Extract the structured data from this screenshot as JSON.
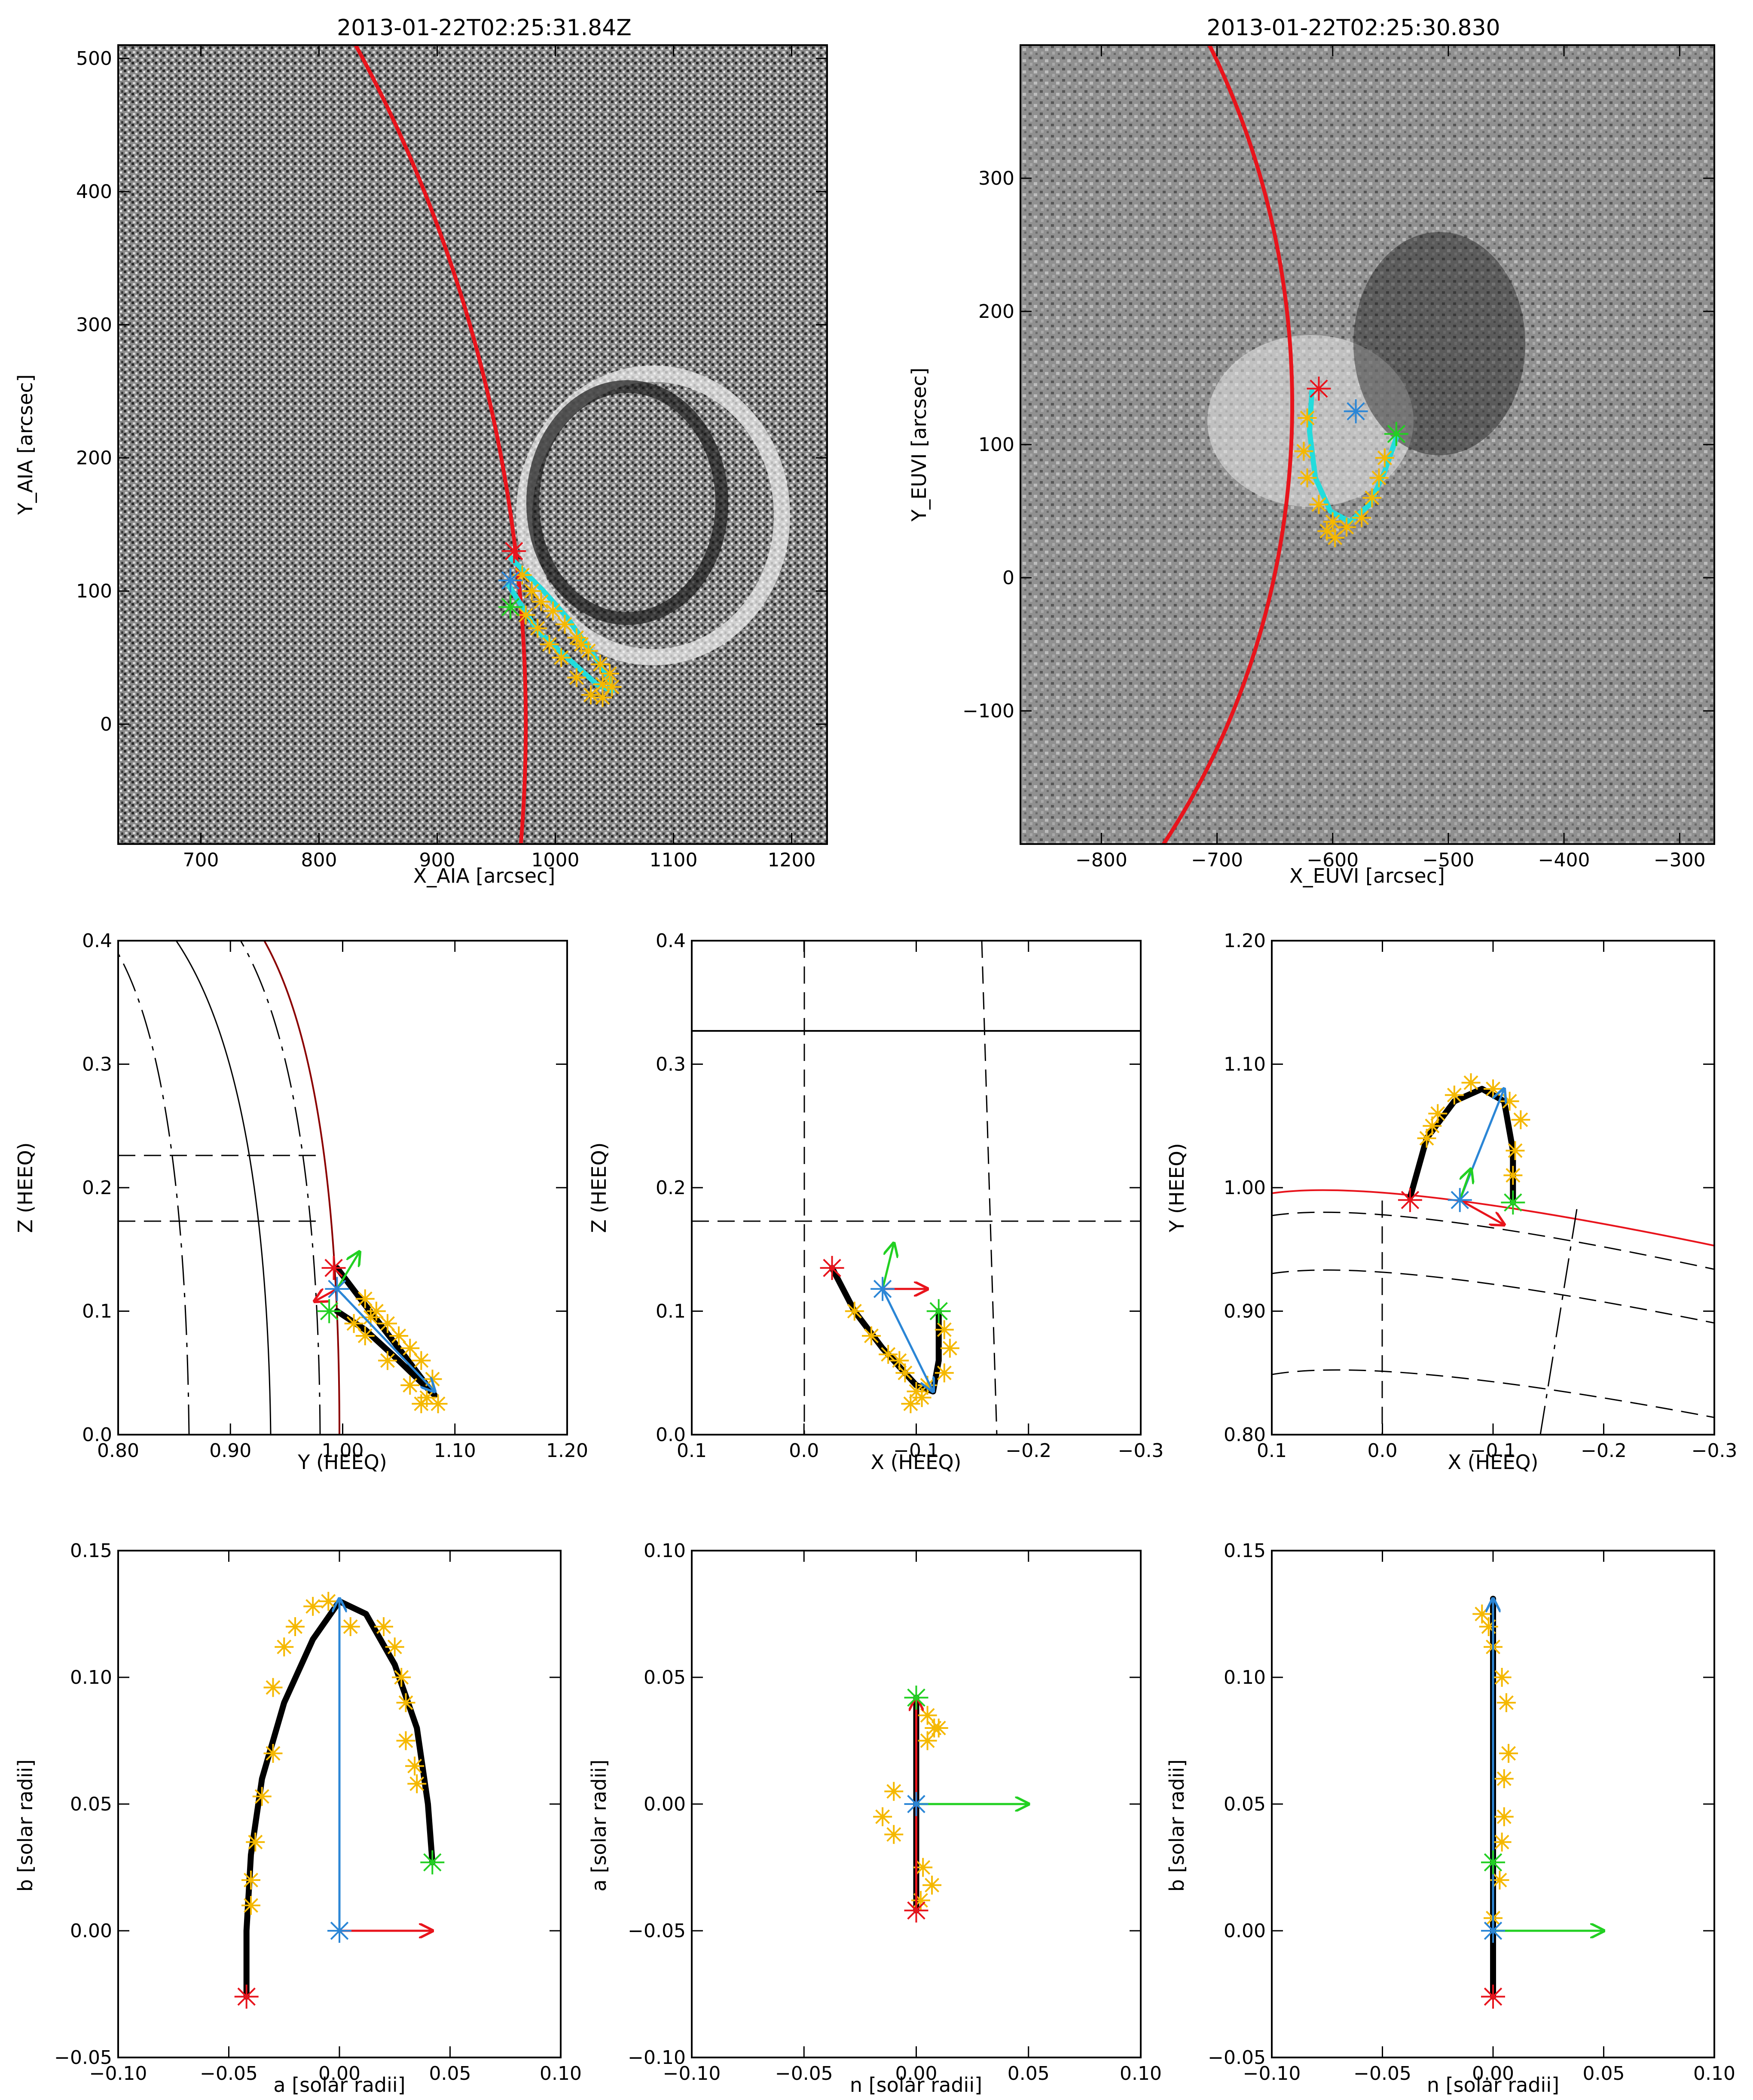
{
  "figure": {
    "panels": [
      {
        "id": "aia",
        "title": "2013-01-22T02:25:31.84Z",
        "xlabel": "X_AIA [arcsec]",
        "ylabel": "Y_AIA [arcsec]",
        "xlim": [
          630,
          1230
        ],
        "ylim": [
          -90,
          510
        ],
        "xticks": [
          700,
          800,
          900,
          1000,
          1100,
          1200
        ],
        "yticks": [
          0,
          100,
          200,
          300,
          400,
          500
        ],
        "image": "difference-image",
        "limb": {
          "color": "#e8141c",
          "cx": 0,
          "cy": 0,
          "r": 975
        },
        "fit_line": [
          [
            960,
            105
          ],
          [
            985,
            70
          ],
          [
            1010,
            50
          ],
          [
            1035,
            30
          ],
          [
            1048,
            25
          ],
          [
            1045,
            35
          ],
          [
            1030,
            55
          ],
          [
            1010,
            80
          ],
          [
            990,
            100
          ],
          [
            970,
            118
          ],
          [
            962,
            125
          ]
        ],
        "markers": {
          "red": [
            965,
            130
          ],
          "blue": [
            962,
            108
          ],
          "green": [
            962,
            88
          ]
        },
        "points": [
          [
            972,
            112
          ],
          [
            980,
            100
          ],
          [
            988,
            92
          ],
          [
            998,
            85
          ],
          [
            1008,
            75
          ],
          [
            1018,
            65
          ],
          [
            1028,
            55
          ],
          [
            1038,
            45
          ],
          [
            1046,
            38
          ],
          [
            1048,
            28
          ],
          [
            1040,
            20
          ],
          [
            1030,
            22
          ],
          [
            1018,
            35
          ],
          [
            1005,
            50
          ],
          [
            995,
            60
          ],
          [
            985,
            72
          ],
          [
            975,
            82
          ],
          [
            1022,
            60
          ],
          [
            1040,
            30
          ]
        ]
      },
      {
        "id": "euvi",
        "title": "2013-01-22T02:25:30.830",
        "xlabel": "X_EUVI [arcsec]",
        "ylabel": "Y_EUVI [arcsec]",
        "xlim": [
          -870,
          -270
        ],
        "ylim": [
          -200,
          400
        ],
        "xticks": [
          -800,
          -700,
          -600,
          -500,
          -400,
          -300
        ],
        "yticks": [
          -100,
          0,
          100,
          200,
          300
        ],
        "image": "difference-image",
        "limb": {
          "color": "#e8141c",
          "cx": -1180,
          "cy": 130,
          "r": 545
        },
        "fit_line": [
          [
            -618,
            140
          ],
          [
            -620,
            110
          ],
          [
            -615,
            75
          ],
          [
            -602,
            50
          ],
          [
            -585,
            42
          ],
          [
            -568,
            55
          ],
          [
            -555,
            80
          ],
          [
            -545,
            105
          ]
        ],
        "markers": {
          "red": [
            -612,
            142
          ],
          "blue": [
            -580,
            125
          ],
          "green": [
            -545,
            108
          ]
        },
        "points": [
          [
            -622,
            120
          ],
          [
            -625,
            95
          ],
          [
            -622,
            75
          ],
          [
            -612,
            55
          ],
          [
            -600,
            42
          ],
          [
            -588,
            38
          ],
          [
            -575,
            45
          ],
          [
            -566,
            60
          ],
          [
            -560,
            75
          ],
          [
            -555,
            90
          ],
          [
            -605,
            35
          ],
          [
            -598,
            30
          ]
        ]
      },
      {
        "id": "heeq-yz",
        "xlabel": "Y (HEEQ)",
        "ylabel": "Z (HEEQ)",
        "xlim": [
          0.8,
          1.2
        ],
        "ylim": [
          0.0,
          0.4
        ],
        "xticks": [
          0.8,
          0.9,
          1.0,
          1.1,
          1.2
        ],
        "yticks": [
          0.0,
          0.1,
          0.2,
          0.3,
          0.4
        ],
        "fit_line": [
          [
            0.995,
            0.135
          ],
          [
            1.02,
            0.105
          ],
          [
            1.05,
            0.07
          ],
          [
            1.075,
            0.04
          ],
          [
            1.082,
            0.032
          ],
          [
            1.075,
            0.038
          ],
          [
            1.05,
            0.06
          ],
          [
            1.02,
            0.085
          ],
          [
            0.995,
            0.1
          ]
        ],
        "markers": {
          "red": [
            0.992,
            0.135
          ],
          "blue": [
            0.995,
            0.118
          ],
          "green": [
            0.988,
            0.1
          ]
        },
        "vectors": {
          "blue": [
            [
              0.995,
              0.118
            ],
            [
              1.082,
              0.035
            ]
          ],
          "green": [
            [
              0.995,
              0.118
            ],
            [
              1.015,
              0.148
            ]
          ],
          "red": [
            [
              0.995,
              0.118
            ],
            [
              0.975,
              0.108
            ]
          ]
        },
        "points": [
          [
            1.03,
            0.1
          ],
          [
            1.05,
            0.08
          ],
          [
            1.07,
            0.06
          ],
          [
            1.08,
            0.045
          ],
          [
            1.075,
            0.03
          ],
          [
            1.06,
            0.04
          ],
          [
            1.04,
            0.06
          ],
          [
            1.02,
            0.08
          ],
          [
            1.01,
            0.09
          ],
          [
            1.02,
            0.11
          ],
          [
            1.04,
            0.09
          ],
          [
            1.06,
            0.07
          ],
          [
            1.085,
            0.025
          ],
          [
            1.07,
            0.025
          ],
          [
            1.025,
            0.095
          ]
        ]
      },
      {
        "id": "heeq-xz",
        "xlabel": "X (HEEQ)",
        "ylabel": "Z (HEEQ)",
        "xlim": [
          0.1,
          -0.3
        ],
        "ylim": [
          0.0,
          0.4
        ],
        "xticks": [
          0.1,
          0.0,
          -0.1,
          -0.2,
          -0.3
        ],
        "yticks": [
          0.0,
          0.1,
          0.2,
          0.3,
          0.4
        ],
        "fit_line": [
          [
            -0.025,
            0.135
          ],
          [
            -0.045,
            0.1
          ],
          [
            -0.07,
            0.07
          ],
          [
            -0.1,
            0.04
          ],
          [
            -0.115,
            0.035
          ],
          [
            -0.12,
            0.06
          ],
          [
            -0.12,
            0.1
          ]
        ],
        "markers": {
          "red": [
            -0.025,
            0.135
          ],
          "blue": [
            -0.07,
            0.118
          ],
          "green": [
            -0.12,
            0.1
          ]
        },
        "vectors": {
          "blue": [
            [
              -0.07,
              0.118
            ],
            [
              -0.115,
              0.035
            ]
          ],
          "green": [
            [
              -0.07,
              0.118
            ],
            [
              -0.08,
              0.155
            ]
          ],
          "red": [
            [
              -0.07,
              0.118
            ],
            [
              -0.11,
              0.118
            ]
          ]
        },
        "points": [
          [
            -0.045,
            0.1
          ],
          [
            -0.06,
            0.08
          ],
          [
            -0.075,
            0.065
          ],
          [
            -0.09,
            0.05
          ],
          [
            -0.1,
            0.035
          ],
          [
            -0.095,
            0.025
          ],
          [
            -0.11,
            0.04
          ],
          [
            -0.125,
            0.05
          ],
          [
            -0.13,
            0.07
          ],
          [
            -0.125,
            0.085
          ],
          [
            -0.085,
            0.06
          ],
          [
            -0.105,
            0.03
          ]
        ]
      },
      {
        "id": "heeq-xy",
        "xlabel": "X (HEEQ)",
        "ylabel": "Y (HEEQ)",
        "xlim": [
          0.1,
          -0.3
        ],
        "ylim": [
          0.8,
          1.2
        ],
        "xticks": [
          0.1,
          0.0,
          -0.1,
          -0.2,
          -0.3
        ],
        "yticks": [
          0.8,
          0.9,
          1.0,
          1.1,
          1.2
        ],
        "fit_line": [
          [
            -0.025,
            0.992
          ],
          [
            -0.04,
            1.04
          ],
          [
            -0.065,
            1.07
          ],
          [
            -0.09,
            1.08
          ],
          [
            -0.11,
            1.07
          ],
          [
            -0.118,
            1.03
          ],
          [
            -0.118,
            0.988
          ]
        ],
        "markers": {
          "red": [
            -0.025,
            0.99
          ],
          "blue": [
            -0.07,
            0.99
          ],
          "green": [
            -0.118,
            0.988
          ]
        },
        "vectors": {
          "blue": [
            [
              -0.07,
              0.99
            ],
            [
              -0.11,
              1.08
            ]
          ],
          "green": [
            [
              -0.07,
              0.99
            ],
            [
              -0.08,
              1.015
            ]
          ],
          "red": [
            [
              -0.07,
              0.99
            ],
            [
              -0.11,
              0.97
            ]
          ]
        },
        "points": [
          [
            -0.04,
            1.04
          ],
          [
            -0.05,
            1.06
          ],
          [
            -0.065,
            1.075
          ],
          [
            -0.08,
            1.085
          ],
          [
            -0.1,
            1.08
          ],
          [
            -0.115,
            1.07
          ],
          [
            -0.125,
            1.055
          ],
          [
            -0.12,
            1.03
          ],
          [
            -0.118,
            1.01
          ],
          [
            -0.045,
            1.05
          ]
        ]
      },
      {
        "id": "loop-ab",
        "xlabel": "a [solar radii]",
        "ylabel": "b [solar radii]",
        "xlim": [
          -0.1,
          0.1
        ],
        "ylim": [
          -0.05,
          0.15
        ],
        "xticks": [
          -0.1,
          -0.05,
          0.0,
          0.05,
          0.1
        ],
        "yticks": [
          -0.05,
          0.0,
          0.05,
          0.1,
          0.15
        ],
        "fit_line": [
          [
            -0.042,
            -0.026
          ],
          [
            -0.042,
            0.0
          ],
          [
            -0.04,
            0.03
          ],
          [
            -0.035,
            0.06
          ],
          [
            -0.025,
            0.09
          ],
          [
            -0.012,
            0.115
          ],
          [
            0.0,
            0.13
          ],
          [
            0.012,
            0.125
          ],
          [
            0.025,
            0.105
          ],
          [
            0.035,
            0.08
          ],
          [
            0.04,
            0.05
          ],
          [
            0.042,
            0.027
          ]
        ],
        "markers": {
          "red": [
            -0.042,
            -0.026
          ],
          "blue": [
            0.0,
            0.0
          ],
          "green": [
            0.042,
            0.027
          ]
        },
        "vectors": {
          "blue": [
            [
              0.0,
              0.0
            ],
            [
              0.0,
              0.131
            ]
          ],
          "red": [
            [
              0.0,
              0.0
            ],
            [
              0.042,
              0.0
            ]
          ]
        },
        "points": [
          [
            -0.04,
            0.02
          ],
          [
            -0.038,
            0.035
          ],
          [
            -0.035,
            0.053
          ],
          [
            -0.03,
            0.07
          ],
          [
            -0.03,
            0.096
          ],
          [
            -0.025,
            0.112
          ],
          [
            -0.02,
            0.12
          ],
          [
            -0.012,
            0.128
          ],
          [
            -0.005,
            0.13
          ],
          [
            0.005,
            0.12
          ],
          [
            0.02,
            0.12
          ],
          [
            0.025,
            0.112
          ],
          [
            0.028,
            0.1
          ],
          [
            0.03,
            0.09
          ],
          [
            0.03,
            0.075
          ],
          [
            0.034,
            0.065
          ],
          [
            0.035,
            0.058
          ],
          [
            -0.04,
            0.01
          ]
        ]
      },
      {
        "id": "loop-na",
        "xlabel": "n [solar radii]",
        "ylabel": "a [solar radii]",
        "xlim": [
          -0.1,
          0.1
        ],
        "ylim": [
          -0.1,
          0.1
        ],
        "xticks": [
          -0.1,
          -0.05,
          0.0,
          0.05,
          0.1
        ],
        "yticks": [
          -0.1,
          -0.05,
          0.0,
          0.05,
          0.1
        ],
        "fit_line": [
          [
            0.0,
            -0.042
          ],
          [
            0.0,
            0.042
          ]
        ],
        "markers": {
          "red": [
            0.0,
            -0.042
          ],
          "blue": [
            0.0,
            0.0
          ],
          "green": [
            0.0,
            0.042
          ]
        },
        "vectors": {
          "red": [
            [
              0.0,
              -0.042
            ],
            [
              0.0,
              0.042
            ]
          ],
          "green": [
            [
              0.0,
              0.0
            ],
            [
              0.05,
              0.0
            ]
          ]
        },
        "points": [
          [
            0.005,
            0.035
          ],
          [
            0.01,
            0.03
          ],
          [
            0.005,
            0.025
          ],
          [
            -0.01,
            0.005
          ],
          [
            -0.015,
            -0.005
          ],
          [
            -0.01,
            -0.012
          ],
          [
            0.003,
            -0.025
          ],
          [
            0.007,
            -0.032
          ],
          [
            0.002,
            -0.038
          ],
          [
            0.008,
            0.03
          ]
        ]
      },
      {
        "id": "loop-nb",
        "xlabel": "n [solar radii]",
        "ylabel": "b [solar radii]",
        "xlim": [
          -0.1,
          0.1
        ],
        "ylim": [
          -0.05,
          0.15
        ],
        "xticks": [
          -0.1,
          -0.05,
          0.0,
          0.05,
          0.1
        ],
        "yticks": [
          -0.05,
          0.0,
          0.05,
          0.1,
          0.15
        ],
        "fit_line": [
          [
            0.0,
            -0.026
          ],
          [
            0.0,
            0.131
          ]
        ],
        "markers": {
          "red": [
            0.0,
            -0.026
          ],
          "blue": [
            0.0,
            0.0
          ],
          "green": [
            0.0,
            0.027
          ]
        },
        "vectors": {
          "blue": [
            [
              0.0,
              0.0
            ],
            [
              0.0,
              0.131
            ]
          ],
          "green": [
            [
              0.0,
              0.0
            ],
            [
              0.05,
              0.0
            ]
          ]
        },
        "points": [
          [
            -0.005,
            0.125
          ],
          [
            -0.002,
            0.12
          ],
          [
            0.0,
            0.112
          ],
          [
            0.004,
            0.1
          ],
          [
            0.006,
            0.09
          ],
          [
            0.007,
            0.07
          ],
          [
            0.005,
            0.06
          ],
          [
            0.005,
            0.045
          ],
          [
            0.004,
            0.035
          ],
          [
            0.003,
            0.02
          ],
          [
            0.0,
            0.005
          ]
        ]
      }
    ],
    "colors": {
      "limb": "#e8141c",
      "fit": "#000000",
      "points": "#f5b800",
      "blue": "#2b86d6",
      "green": "#22d022",
      "red": "#e8141c",
      "cyan": "#22dcdc"
    }
  }
}
